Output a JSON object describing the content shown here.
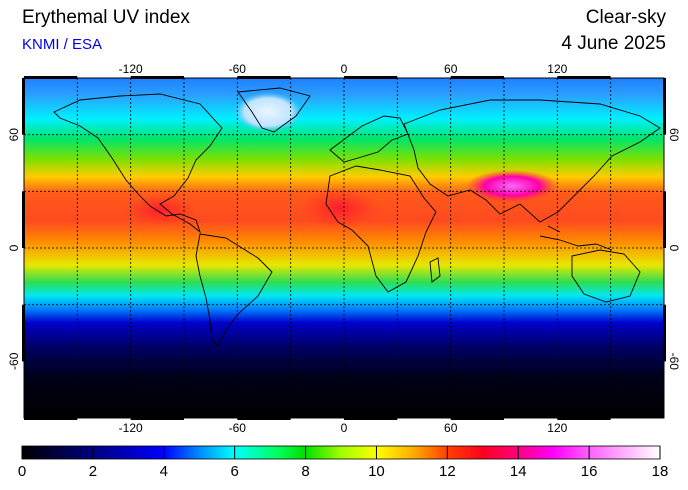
{
  "header": {
    "title": "Erythemal UV index",
    "subtitle": "KNMI / ESA",
    "kind": "Clear-sky",
    "date": "4 June 2025"
  },
  "map": {
    "projection": "equirectangular",
    "lon_range": [
      -180,
      180
    ],
    "lat_range": [
      -90,
      90
    ],
    "lon_ticks": [
      "-120",
      "-60",
      "0",
      "60",
      "120"
    ],
    "lat_ticks": [
      "60",
      "0",
      "-60"
    ],
    "gridlines": "dotted every 30 degrees"
  },
  "colorbar": {
    "min": 0,
    "max": 18,
    "labels": [
      "0",
      "2",
      "4",
      "6",
      "8",
      "10",
      "12",
      "14",
      "16",
      "18"
    ],
    "colors": [
      "#000000",
      "#00008b",
      "#0000ff",
      "#0080ff",
      "#00ffff",
      "#00ff66",
      "#33dd00",
      "#ccff00",
      "#ffff00",
      "#ffa500",
      "#ff3300",
      "#ff0033",
      "#ff00aa",
      "#ff66ff",
      "#ffffff"
    ]
  }
}
